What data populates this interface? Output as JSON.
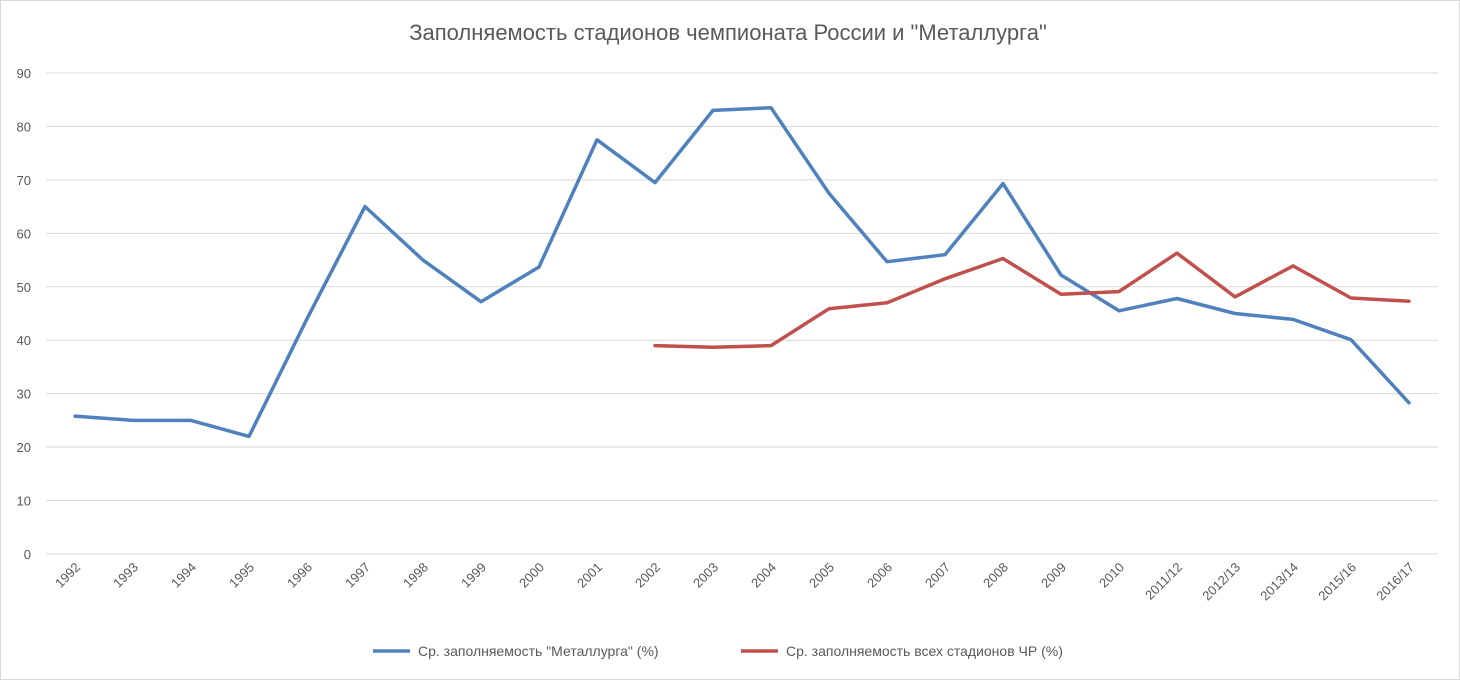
{
  "chart_data": {
    "type": "line",
    "title": "Заполняемость стадионов чемпионата России и  \"Металлурга\"",
    "xlabel": "",
    "ylabel": "",
    "ylim": [
      0,
      90
    ],
    "yticks": [
      "0",
      "10",
      "20",
      "30",
      "40",
      "50",
      "60",
      "70",
      "80",
      "90"
    ],
    "grid": true,
    "legend_position": "bottom",
    "categories": [
      "1992",
      "1993",
      "1994",
      "1995",
      "1996",
      "1997",
      "1998",
      "1999",
      "2000",
      "2001",
      "2002",
      "2003",
      "2004",
      "2005",
      "2006",
      "2007",
      "2008",
      "2009",
      "2010",
      "2011/12",
      "2012/13",
      "2013/14",
      "2015/16",
      "2016/17"
    ],
    "series": [
      {
        "name": "Ср. заполняемость \"Металлурга\" (%)",
        "color": "#4f81bd",
        "values": [
          25.8,
          25.0,
          25.0,
          22.0,
          44.0,
          65.0,
          55.0,
          47.2,
          53.7,
          77.5,
          69.5,
          83.0,
          83.5,
          67.5,
          54.7,
          56.0,
          69.3,
          52.2,
          45.5,
          47.8,
          45.0,
          43.9,
          40.1,
          28.3
        ]
      },
      {
        "name": "Ср. заполняемость всех стадионов ЧР (%)",
        "color": "#c0504d",
        "values": [
          null,
          null,
          null,
          null,
          null,
          null,
          null,
          null,
          null,
          null,
          39.0,
          38.7,
          39.0,
          45.9,
          47.0,
          51.5,
          55.3,
          48.6,
          49.1,
          56.3,
          48.1,
          53.9,
          47.9,
          47.3
        ]
      }
    ]
  }
}
